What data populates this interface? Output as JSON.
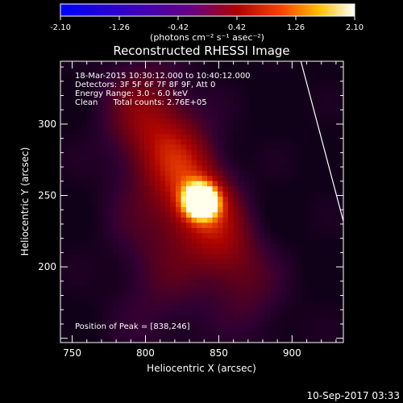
{
  "chart_data": {
    "type": "heatmap",
    "title": "Reconstructed RHESSI Image",
    "xlabel": "Heliocentric X (arcsec)",
    "ylabel": "Heliocentric Y (arcsec)",
    "xlim": [
      742,
      935
    ],
    "ylim": [
      147,
      344
    ],
    "x_ticks": [
      750,
      800,
      850,
      900
    ],
    "y_ticks": [
      200,
      250,
      300
    ],
    "colorbar": {
      "ticks": [
        -2.1,
        -1.26,
        -0.42,
        0.42,
        1.26,
        2.1
      ],
      "tick_labels": [
        "-2.10",
        "-1.26",
        "-0.42",
        "0.42",
        "1.26",
        "2.10"
      ],
      "range": [
        -2.1,
        2.1
      ],
      "colormap": "blue-purple-red-yellow-white"
    },
    "colorbar_unit": "(photons cm⁻² s⁻¹ asec⁻²)",
    "annotations": [
      "18-Mar-2015 10:30:12.000 to 10:40:12.000",
      "Detectors: 3F 5F 6F 7F 8F 9F, Att 0",
      "Energy Range: 3.0 - 6.0 keV",
      "Clean      Total counts: 2.76E+05"
    ],
    "peak_label": "Position of Peak = [838,246]",
    "peak": [
      838,
      246
    ],
    "limb_line": [
      [
        905,
        348
      ],
      [
        935,
        232
      ]
    ],
    "date_stamp": "10-Sep-2017 03:33"
  }
}
